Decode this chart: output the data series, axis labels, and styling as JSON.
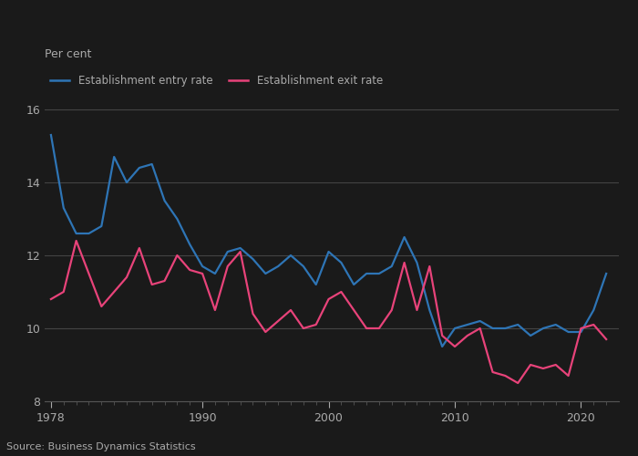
{
  "entry_years": [
    1978,
    1979,
    1980,
    1981,
    1982,
    1983,
    1984,
    1985,
    1986,
    1987,
    1988,
    1989,
    1990,
    1991,
    1992,
    1993,
    1994,
    1995,
    1996,
    1997,
    1998,
    1999,
    2000,
    2001,
    2002,
    2003,
    2004,
    2005,
    2006,
    2007,
    2008,
    2009,
    2010,
    2011,
    2012,
    2013,
    2014,
    2015,
    2016,
    2017,
    2018,
    2019,
    2020,
    2021,
    2022
  ],
  "entry_values": [
    15.3,
    13.3,
    12.6,
    12.6,
    12.8,
    14.7,
    14.0,
    14.4,
    14.5,
    13.5,
    13.0,
    12.3,
    11.7,
    11.5,
    12.1,
    12.2,
    11.9,
    11.5,
    11.7,
    12.0,
    11.7,
    11.2,
    12.1,
    11.8,
    11.2,
    11.5,
    11.5,
    11.7,
    12.5,
    11.8,
    10.5,
    9.5,
    10.0,
    10.1,
    10.2,
    10.0,
    10.0,
    10.1,
    9.8,
    10.0,
    10.1,
    9.9,
    9.9,
    10.5,
    11.5
  ],
  "exit_years": [
    1978,
    1979,
    1980,
    1981,
    1982,
    1983,
    1984,
    1985,
    1986,
    1987,
    1988,
    1989,
    1990,
    1991,
    1992,
    1993,
    1994,
    1995,
    1996,
    1997,
    1998,
    1999,
    2000,
    2001,
    2002,
    2003,
    2004,
    2005,
    2006,
    2007,
    2008,
    2009,
    2010,
    2011,
    2012,
    2013,
    2014,
    2015,
    2016,
    2017,
    2018,
    2019,
    2020,
    2021,
    2022
  ],
  "exit_values": [
    10.8,
    11.0,
    12.4,
    11.5,
    10.6,
    11.0,
    11.4,
    12.2,
    11.2,
    11.3,
    12.0,
    11.6,
    11.5,
    10.5,
    11.7,
    12.1,
    10.4,
    9.9,
    10.2,
    10.5,
    10.0,
    10.1,
    10.8,
    11.0,
    10.5,
    10.0,
    10.0,
    10.5,
    11.8,
    10.5,
    11.7,
    9.8,
    9.5,
    9.8,
    10.0,
    8.8,
    8.7,
    8.5,
    9.0,
    8.9,
    9.0,
    8.7,
    10.0,
    10.1,
    9.7
  ],
  "entry_color": "#2E75B6",
  "exit_color": "#E8437A",
  "ylabel": "Per cent",
  "ylim": [
    8,
    16.5
  ],
  "yticks": [
    8,
    10,
    12,
    14,
    16
  ],
  "xlim": [
    1977.5,
    2023
  ],
  "xticks": [
    1978,
    1990,
    2000,
    2010,
    2020
  ],
  "entry_label": "Establishment entry rate",
  "exit_label": "Establishment exit rate",
  "source_text": "Source: Business Dynamics Statistics",
  "bg_color": "#1a1a1a",
  "plot_bg_color": "#1a1a1a",
  "grid_color": "#444444",
  "text_color": "#aaaaaa",
  "spine_color": "#555555",
  "line_width": 1.6
}
